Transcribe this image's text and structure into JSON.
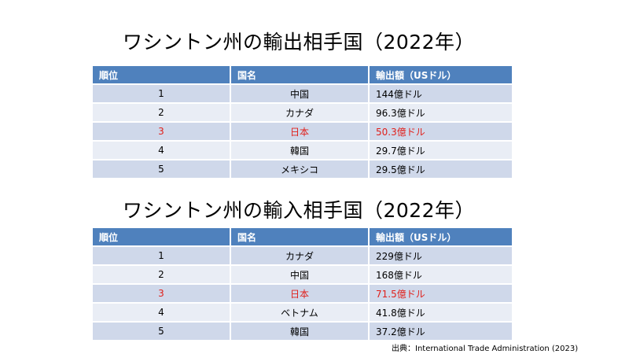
{
  "export_title": "ワシントン州の輸出相手国（2022年）",
  "import_title": "ワシントン州の輸入相手国（2022年）",
  "headers": {
    "rank": "順位",
    "country": "国名",
    "amount": "輸出額（USドル）"
  },
  "export_rows": [
    {
      "rank": "1",
      "country": "中国",
      "amount": "144億ドル"
    },
    {
      "rank": "2",
      "country": "カナダ",
      "amount": "96.3億ドル"
    },
    {
      "rank": "3",
      "country": "日本",
      "amount": "50.3億ドル"
    },
    {
      "rank": "4",
      "country": "韓国",
      "amount": "29.7億ドル"
    },
    {
      "rank": "5",
      "country": "メキシコ",
      "amount": "29.5億ドル"
    }
  ],
  "import_rows": [
    {
      "rank": "1",
      "country": "カナダ",
      "amount": "229億ドル"
    },
    {
      "rank": "2",
      "country": "中国",
      "amount": "168億ドル"
    },
    {
      "rank": "3",
      "country": "日本",
      "amount": "71.5億ドル"
    },
    {
      "rank": "4",
      "country": "ベトナム",
      "amount": "41.8億ドル"
    },
    {
      "rank": "5",
      "country": "韓国",
      "amount": "37.2億ドル"
    }
  ],
  "highlight_color": "#e0201b",
  "header_color": "#4f81bd",
  "source": "出典：International Trade Administration (2023)"
}
